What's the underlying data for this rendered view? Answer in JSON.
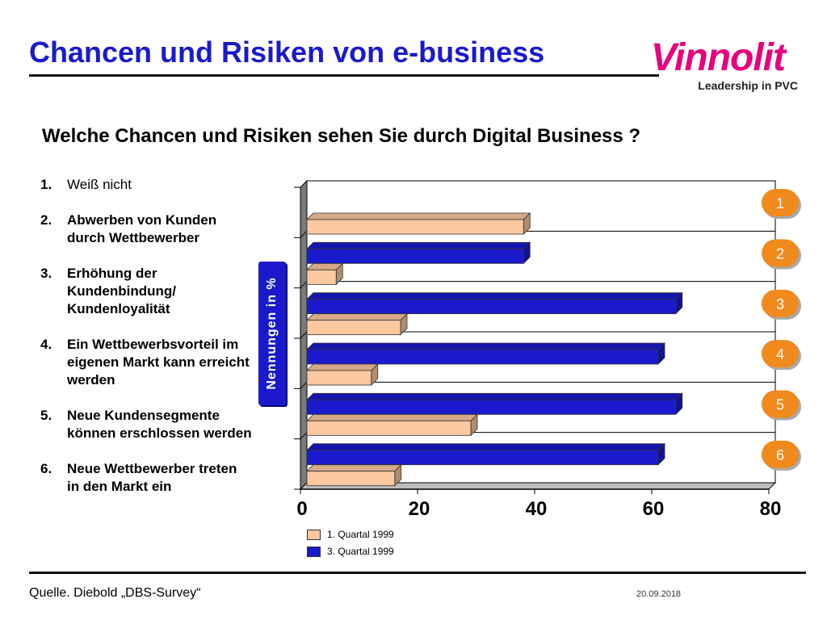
{
  "header": {
    "title": "Chancen und Risiken von e-business",
    "logo_text": "Vinnolit",
    "logo_tagline": "Leadership in PVC"
  },
  "question": "Welche Chancen und Risiken sehen Sie durch Digital Business ?",
  "items": [
    {
      "num": "1.",
      "text": "Weiß nicht"
    },
    {
      "num": "2.",
      "text": "Abwerben von Kunden durch Wettbewerber"
    },
    {
      "num": "3.",
      "text": "Erhöhung der Kundenbindung/ Kundenloyalität"
    },
    {
      "num": "4.",
      "text": "Ein Wettbewerbsvorteil im eigenen Markt kann erreicht werden"
    },
    {
      "num": "5.",
      "text": "Neue Kundensegmente können erschlossen werden"
    },
    {
      "num": "6.",
      "text": "Neue Wettbewerber treten in den Markt ein"
    }
  ],
  "chart_data": {
    "type": "bar",
    "orientation": "horizontal",
    "categories": [
      "1",
      "2",
      "3",
      "4",
      "5",
      "6"
    ],
    "series": [
      {
        "name": "1. Quartal 1999",
        "values": [
          37,
          5,
          16,
          11,
          28,
          15
        ]
      },
      {
        "name": "3. Quartal 1999",
        "values": [
          null,
          37,
          63,
          60,
          63,
          60
        ]
      }
    ],
    "ylabel": "Nennungen in %",
    "xlim": [
      0,
      80
    ],
    "xticks": [
      0,
      20,
      40,
      60,
      80
    ],
    "grid": true,
    "legend_position": "bottom-left"
  },
  "colors": {
    "q1": "#fcc8a0",
    "q3": "#1a1acc",
    "badge": "#f08a1c",
    "title": "#1a1acc"
  },
  "footer": {
    "source": "Quelle. Diebold „DBS-Survey“",
    "date": "20.09.2018"
  }
}
